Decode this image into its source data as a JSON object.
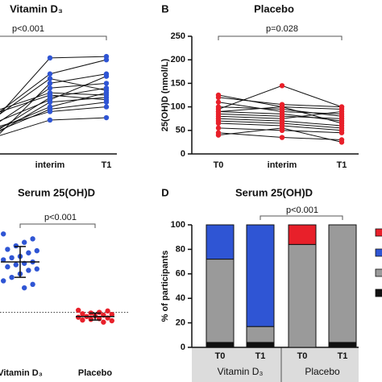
{
  "chart_data": [
    {
      "type": "line",
      "title": "Vitamin D₃",
      "annotation": "p<0.001",
      "categories": [
        null,
        "interim",
        "T1"
      ],
      "ylim": [
        0,
        250
      ],
      "series": [
        {
          "color": "#2f55d4",
          "values": [
            30,
            150,
            170
          ]
        },
        {
          "color": "#2f55d4",
          "values": [
            45,
            120,
            140
          ]
        },
        {
          "color": "#2f55d4",
          "values": [
            60,
            140,
            150
          ]
        },
        {
          "color": "#2f55d4",
          "values": [
            50,
            100,
            130
          ]
        },
        {
          "color": "#2f55d4",
          "values": [
            70,
            204,
            207
          ]
        },
        {
          "color": "#2f55d4",
          "values": [
            80,
            170,
            200
          ]
        },
        {
          "color": "#2f55d4",
          "values": [
            40,
            110,
            120
          ]
        },
        {
          "color": "#2f55d4",
          "values": [
            90,
            130,
            125
          ]
        },
        {
          "color": "#2f55d4",
          "values": [
            55,
            90,
            100
          ]
        },
        {
          "color": "#2f55d4",
          "values": [
            65,
            115,
            165
          ]
        },
        {
          "color": "#2f55d4",
          "values": [
            35,
            72,
            77
          ]
        },
        {
          "color": "#2f55d4",
          "values": [
            75,
            160,
            135
          ]
        },
        {
          "color": "#2f55d4",
          "values": [
            85,
            125,
            115
          ]
        },
        {
          "color": "#2f55d4",
          "values": [
            45,
            95,
            110
          ]
        }
      ]
    },
    {
      "type": "line",
      "panel": "B",
      "title": "Placebo",
      "annotation": "p=0.028",
      "y_label": "25(OH)D (nmol/L)",
      "categories": [
        "T0",
        "interim",
        "T1"
      ],
      "ylim": [
        0,
        250
      ],
      "yticks": [
        0,
        50,
        100,
        150,
        200,
        250
      ],
      "series": [
        {
          "color": "#e8202a",
          "values": [
            125,
            100,
            95
          ]
        },
        {
          "color": "#e8202a",
          "values": [
            110,
            90,
            85
          ]
        },
        {
          "color": "#e8202a",
          "values": [
            100,
            95,
            80
          ]
        },
        {
          "color": "#e8202a",
          "values": [
            95,
            145,
            100
          ]
        },
        {
          "color": "#e8202a",
          "values": [
            90,
            85,
            70
          ]
        },
        {
          "color": "#e8202a",
          "values": [
            85,
            80,
            75
          ]
        },
        {
          "color": "#e8202a",
          "values": [
            80,
            75,
            90
          ]
        },
        {
          "color": "#e8202a",
          "values": [
            75,
            70,
            60
          ]
        },
        {
          "color": "#e8202a",
          "values": [
            70,
            65,
            55
          ]
        },
        {
          "color": "#e8202a",
          "values": [
            65,
            60,
            50
          ]
        },
        {
          "color": "#e8202a",
          "values": [
            55,
            50,
            45
          ]
        },
        {
          "color": "#e8202a",
          "values": [
            45,
            35,
            30
          ]
        },
        {
          "color": "#e8202a",
          "values": [
            40,
            55,
            25
          ]
        },
        {
          "color": "#e8202a",
          "values": [
            120,
            105,
            100
          ]
        },
        {
          "color": "#e8202a",
          "values": [
            90,
            100,
            65
          ]
        }
      ]
    },
    {
      "type": "strip",
      "title": "Serum 25(OH)D",
      "annotation": "p<0.001",
      "categories": [
        "Vitamin D₃",
        "Placebo"
      ],
      "ylim": [
        0,
        175
      ],
      "ref_line": 50,
      "series": [
        {
          "color": "#2f55d4",
          "values": [
            162,
            155,
            150,
            145,
            140,
            138,
            135,
            130,
            128,
            125,
            122,
            120,
            118,
            115,
            112,
            110,
            105,
            100,
            95,
            90,
            85
          ],
          "mean": 122,
          "sd": 22
        },
        {
          "color": "#e8202a",
          "values": [
            53,
            52,
            50,
            49,
            48,
            47,
            46,
            45,
            44,
            43,
            42,
            41,
            40,
            39,
            38,
            36
          ],
          "mean": 44,
          "sd": 5
        }
      ]
    },
    {
      "type": "stacked_bar",
      "panel": "D",
      "title": "Serum 25(OH)D",
      "annotation": "p<0.001",
      "y_label": "% of participants",
      "categories": [
        "T0",
        "T1",
        "T0",
        "T1"
      ],
      "group_labels": [
        "Vitamin D₃",
        "Placebo"
      ],
      "ylim": [
        0,
        100
      ],
      "yticks": [
        0,
        20,
        40,
        60,
        80,
        100
      ],
      "series": [
        {
          "color": "#111111",
          "values": [
            4,
            4,
            0,
            4
          ]
        },
        {
          "color": "#9a9a9a",
          "values": [
            68,
            13,
            84,
            96
          ]
        },
        {
          "color": "#2f55d4",
          "values": [
            28,
            83,
            0,
            0
          ]
        },
        {
          "color": "#e8202a",
          "values": [
            0,
            0,
            16,
            0
          ]
        }
      ]
    }
  ]
}
